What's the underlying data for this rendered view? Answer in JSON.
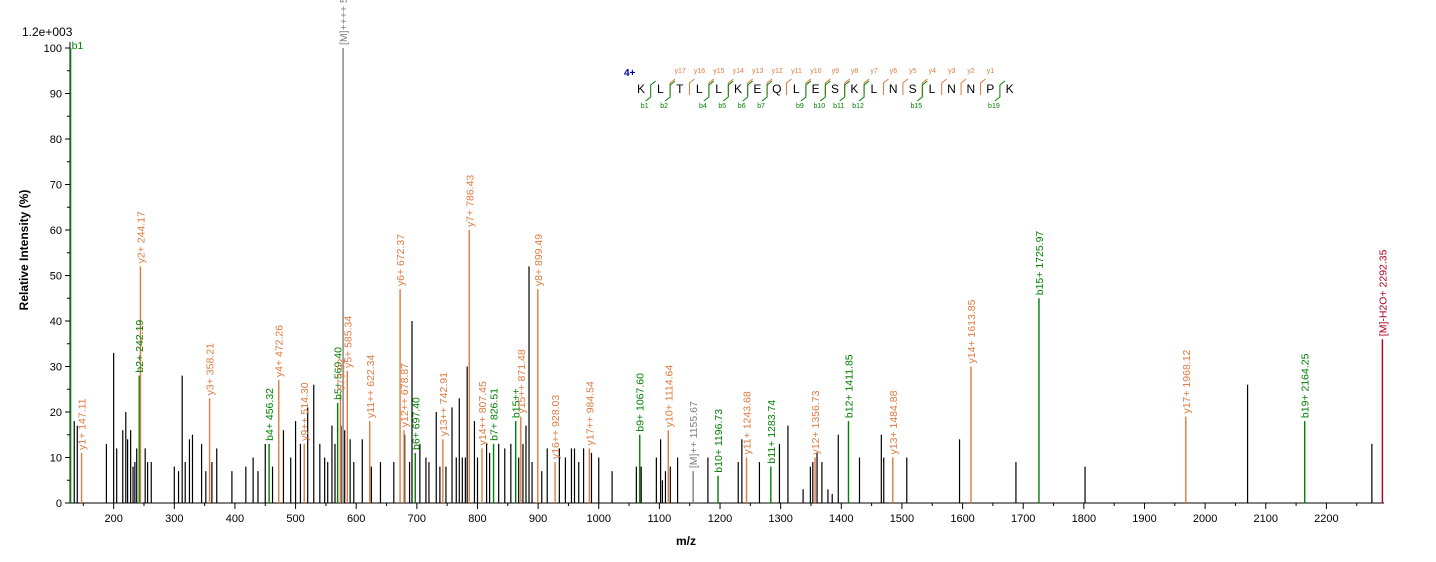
{
  "chart_data": {
    "type": "bar",
    "xlabel": "m/z",
    "ylabel": "Relative   Intensity (%)",
    "scale_label": "1.2e+003",
    "xlim": [
      128,
      2295
    ],
    "ylim": [
      0,
      100
    ],
    "x_ticks": [
      200,
      300,
      400,
      500,
      600,
      700,
      800,
      900,
      1000,
      1100,
      1200,
      1300,
      1400,
      1500,
      1600,
      1700,
      1800,
      1900,
      2000,
      2100,
      2200
    ],
    "y_ticks": [
      0,
      10,
      20,
      30,
      40,
      50,
      60,
      70,
      80,
      90,
      100
    ],
    "colors": {
      "b": "#008000",
      "y": "#e07a40",
      "M": "#808080",
      "H2O": "#b00020",
      "unlabeled": "#000000"
    },
    "labeled_peaks": [
      {
        "mz": 129,
        "intensity": 100,
        "label": "b1",
        "type": "b"
      },
      {
        "mz": 147.11,
        "intensity": 11,
        "label": "y1+ 147.11",
        "type": "y"
      },
      {
        "mz": 242.19,
        "intensity": 28,
        "label": "b2+ 242.19",
        "type": "b"
      },
      {
        "mz": 244.17,
        "intensity": 52,
        "label": "y2+ 244.17",
        "type": "y"
      },
      {
        "mz": 358.21,
        "intensity": 23,
        "label": "y3+ 358.21",
        "type": "y"
      },
      {
        "mz": 456.32,
        "intensity": 13,
        "label": "b4+ 456.32",
        "type": "b"
      },
      {
        "mz": 472.26,
        "intensity": 27,
        "label": "y4+ 472.26",
        "type": "y"
      },
      {
        "mz": 514.3,
        "intensity": 13,
        "label": "y9++ 514.30",
        "type": "y"
      },
      {
        "mz": 569.4,
        "intensity": 22,
        "label": "b5+ 569.40",
        "type": "b"
      },
      {
        "mz": 573.92,
        "intensity": 24,
        "label": "573.92",
        "type": "y"
      },
      {
        "mz": 578.35,
        "intensity": 100,
        "label": "[M]++++ 578.35",
        "type": "M"
      },
      {
        "mz": 585.34,
        "intensity": 29,
        "label": "y5+ 585.34",
        "type": "y"
      },
      {
        "mz": 622.34,
        "intensity": 18,
        "label": "y11++ 622.34",
        "type": "y"
      },
      {
        "mz": 672.37,
        "intensity": 47,
        "label": "y6+ 672.37",
        "type": "y"
      },
      {
        "mz": 678.87,
        "intensity": 16,
        "label": "y12++ 678.87",
        "type": "y"
      },
      {
        "mz": 697.4,
        "intensity": 11,
        "label": "b6+ 697.40",
        "type": "b"
      },
      {
        "mz": 742.91,
        "intensity": 14,
        "label": "y13++ 742.91",
        "type": "y"
      },
      {
        "mz": 786.43,
        "intensity": 60,
        "label": "y7+ 786.43",
        "type": "y"
      },
      {
        "mz": 807.45,
        "intensity": 12,
        "label": "y14++ 807.45",
        "type": "y"
      },
      {
        "mz": 826.51,
        "intensity": 13,
        "label": "b7+ 826.51",
        "type": "b"
      },
      {
        "mz": 863.0,
        "intensity": 18,
        "label": "b15++",
        "type": "b"
      },
      {
        "mz": 871.48,
        "intensity": 19,
        "label": "y15++ 871.48",
        "type": "y"
      },
      {
        "mz": 899.49,
        "intensity": 47,
        "label": "y8+ 899.49",
        "type": "y"
      },
      {
        "mz": 928.03,
        "intensity": 9,
        "label": "y16++ 928.03",
        "type": "y"
      },
      {
        "mz": 984.54,
        "intensity": 12,
        "label": "y17++ 984.54",
        "type": "y"
      },
      {
        "mz": 1067.6,
        "intensity": 15,
        "label": "b9+ 1067.60",
        "type": "b"
      },
      {
        "mz": 1114.64,
        "intensity": 16,
        "label": "y10+ 1114.64",
        "type": "y"
      },
      {
        "mz": 1155.67,
        "intensity": 7,
        "label": "[M]++ 1155.67",
        "type": "M"
      },
      {
        "mz": 1196.73,
        "intensity": 6,
        "label": "b10+ 1196.73",
        "type": "b"
      },
      {
        "mz": 1243.68,
        "intensity": 10,
        "label": "y11+ 1243.68",
        "type": "y"
      },
      {
        "mz": 1283.74,
        "intensity": 8,
        "label": "b11+ 1283.74",
        "type": "b"
      },
      {
        "mz": 1356.73,
        "intensity": 10,
        "label": "y12+ 1356.73",
        "type": "y"
      },
      {
        "mz": 1411.85,
        "intensity": 18,
        "label": "b12+ 1411.85",
        "type": "b"
      },
      {
        "mz": 1484.88,
        "intensity": 10,
        "label": "y13+ 1484.88",
        "type": "y"
      },
      {
        "mz": 1613.85,
        "intensity": 30,
        "label": "y14+ 1613.85",
        "type": "y"
      },
      {
        "mz": 1725.97,
        "intensity": 45,
        "label": "b15+ 1725.97",
        "type": "b"
      },
      {
        "mz": 1968.12,
        "intensity": 19,
        "label": "y17+ 1968.12",
        "type": "y"
      },
      {
        "mz": 2164.25,
        "intensity": 18,
        "label": "b19+ 2164.25",
        "type": "b"
      },
      {
        "mz": 2292.35,
        "intensity": 36,
        "label": "[M]-H2O+ 2292.35",
        "type": "H2O"
      }
    ],
    "unlabeled_peaks": [
      [
        135,
        18
      ],
      [
        140,
        17
      ],
      [
        188,
        13
      ],
      [
        200,
        33
      ],
      [
        205,
        12
      ],
      [
        215,
        16
      ],
      [
        220,
        20
      ],
      [
        223,
        14
      ],
      [
        228,
        16
      ],
      [
        232,
        8
      ],
      [
        235,
        9
      ],
      [
        238,
        12
      ],
      [
        252,
        12
      ],
      [
        256,
        9
      ],
      [
        262,
        9
      ],
      [
        300,
        8
      ],
      [
        307,
        7
      ],
      [
        313,
        28
      ],
      [
        318,
        9
      ],
      [
        325,
        14
      ],
      [
        330,
        15
      ],
      [
        345,
        13
      ],
      [
        352,
        7
      ],
      [
        362,
        9
      ],
      [
        370,
        12
      ],
      [
        395,
        7
      ],
      [
        418,
        8
      ],
      [
        430,
        10
      ],
      [
        438,
        7
      ],
      [
        450,
        13
      ],
      [
        462,
        8
      ],
      [
        480,
        16
      ],
      [
        492,
        10
      ],
      [
        500,
        18
      ],
      [
        508,
        13
      ],
      [
        520,
        21
      ],
      [
        530,
        26
      ],
      [
        540,
        13
      ],
      [
        548,
        10
      ],
      [
        553,
        9
      ],
      [
        560,
        17
      ],
      [
        565,
        13
      ],
      [
        575,
        17
      ],
      [
        581,
        16
      ],
      [
        590,
        14
      ],
      [
        596,
        9
      ],
      [
        610,
        14
      ],
      [
        625,
        8
      ],
      [
        640,
        9
      ],
      [
        662,
        9
      ],
      [
        680,
        15
      ],
      [
        688,
        9
      ],
      [
        692,
        40
      ],
      [
        705,
        13
      ],
      [
        715,
        10
      ],
      [
        720,
        9
      ],
      [
        732,
        20
      ],
      [
        738,
        8
      ],
      [
        748,
        8
      ],
      [
        758,
        21
      ],
      [
        765,
        10
      ],
      [
        770,
        23
      ],
      [
        775,
        10
      ],
      [
        780,
        10
      ],
      [
        783,
        30
      ],
      [
        795,
        18
      ],
      [
        800,
        10
      ],
      [
        815,
        13
      ],
      [
        820,
        11
      ],
      [
        835,
        13
      ],
      [
        845,
        12
      ],
      [
        855,
        13
      ],
      [
        868,
        10
      ],
      [
        875,
        13
      ],
      [
        880,
        17
      ],
      [
        885,
        52
      ],
      [
        890,
        9
      ],
      [
        906,
        7
      ],
      [
        915,
        12
      ],
      [
        935,
        12
      ],
      [
        945,
        10
      ],
      [
        955,
        12
      ],
      [
        960,
        12
      ],
      [
        967,
        9
      ],
      [
        975,
        12
      ],
      [
        988,
        11
      ],
      [
        1000,
        10
      ],
      [
        1022,
        7
      ],
      [
        1062,
        8
      ],
      [
        1070,
        8
      ],
      [
        1095,
        10
      ],
      [
        1102,
        14
      ],
      [
        1105,
        5
      ],
      [
        1110,
        7
      ],
      [
        1118,
        8
      ],
      [
        1130,
        10
      ],
      [
        1180,
        10
      ],
      [
        1230,
        9
      ],
      [
        1236,
        14
      ],
      [
        1265,
        9
      ],
      [
        1298,
        13
      ],
      [
        1312,
        17
      ],
      [
        1337,
        3
      ],
      [
        1349,
        8
      ],
      [
        1353,
        9
      ],
      [
        1360,
        11
      ],
      [
        1368,
        9
      ],
      [
        1378,
        3
      ],
      [
        1385,
        2
      ],
      [
        1395,
        15
      ],
      [
        1430,
        10
      ],
      [
        1466,
        15
      ],
      [
        1470,
        10
      ],
      [
        1508,
        10
      ],
      [
        1595,
        14
      ],
      [
        1688,
        9
      ],
      [
        1802,
        8
      ],
      [
        2070,
        26
      ],
      [
        2275,
        13
      ]
    ],
    "sequence": {
      "charge": "4+",
      "residues": [
        "K",
        "L",
        "T",
        "L",
        "L",
        "K",
        "E",
        "Q",
        "L",
        "E",
        "S",
        "K",
        "L",
        "N",
        "S",
        "L",
        "N",
        "N",
        "P",
        "K"
      ],
      "y_ions": [
        "y17",
        "y16",
        "y15",
        "y14",
        "y13",
        "y12",
        "y11",
        "y10",
        "y9",
        "y8",
        "y7",
        "y6",
        "y5",
        "y4",
        "y3",
        "y2",
        "y1"
      ],
      "b_ions": [
        "b1",
        "b2",
        "b4",
        "b5",
        "b6",
        "b7",
        "b9",
        "b10",
        "b11",
        "b12",
        "b15",
        "b19"
      ]
    }
  }
}
